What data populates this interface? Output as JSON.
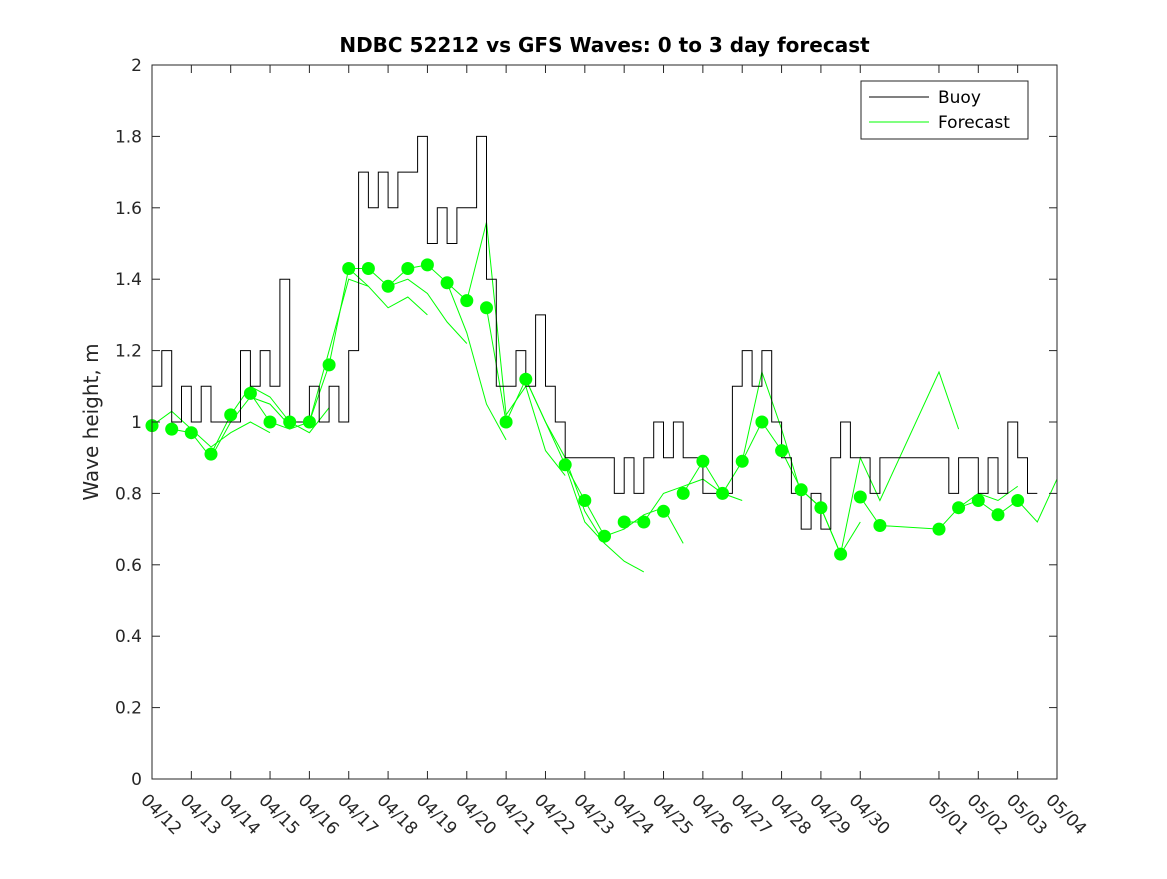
{
  "chart_data": {
    "type": "line",
    "title": "NDBC 52212 vs GFS Waves: 0 to 3 day forecast",
    "xlabel": "",
    "ylabel": "Wave height, m",
    "xlim": [
      "04/12",
      "05/04"
    ],
    "ylim": [
      0,
      2
    ],
    "x_tick_labels": [
      "04/12",
      "04/13",
      "04/14",
      "04/15",
      "04/16",
      "04/17",
      "04/18",
      "04/19",
      "04/20",
      "04/21",
      "04/22",
      "04/23",
      "04/24",
      "04/25",
      "04/26",
      "04/27",
      "04/28",
      "04/29",
      "04/30",
      "05/01",
      "05/02",
      "05/03",
      "05/04"
    ],
    "y_tick_labels": [
      "0",
      "0.2",
      "0.4",
      "0.6",
      "0.8",
      "1",
      "1.2",
      "1.4",
      "1.6",
      "1.8",
      "2"
    ],
    "y_ticks": [
      0,
      0.2,
      0.4,
      0.6,
      0.8,
      1,
      1.2,
      1.4,
      1.6,
      1.8,
      2
    ],
    "grid": false,
    "legend_position": "top-right",
    "colors": {
      "buoy": "#000000",
      "forecast": "#00ff00"
    },
    "series": [
      {
        "name": "Buoy",
        "x": [
          "04/12 00:00",
          "04/12 06:00",
          "04/12 12:00",
          "04/12 18:00",
          "04/13 00:00",
          "04/13 06:00",
          "04/13 12:00",
          "04/13 18:00",
          "04/14 00:00",
          "04/14 06:00",
          "04/14 12:00",
          "04/14 18:00",
          "04/15 00:00",
          "04/15 06:00",
          "04/15 12:00",
          "04/15 18:00",
          "04/16 00:00",
          "04/16 06:00",
          "04/16 12:00",
          "04/16 18:00",
          "04/17 00:00",
          "04/17 06:00",
          "04/17 12:00",
          "04/17 18:00",
          "04/18 00:00",
          "04/18 06:00",
          "04/18 12:00",
          "04/18 18:00",
          "04/19 00:00",
          "04/19 06:00",
          "04/19 12:00",
          "04/19 18:00",
          "04/20 00:00",
          "04/20 06:00",
          "04/20 12:00",
          "04/20 18:00",
          "04/21 00:00",
          "04/21 06:00",
          "04/21 12:00",
          "04/21 18:00",
          "04/22 00:00",
          "04/22 06:00",
          "04/22 12:00",
          "04/22 18:00",
          "04/23 00:00",
          "04/23 06:00",
          "04/23 12:00",
          "04/23 18:00",
          "04/24 00:00",
          "04/24 06:00",
          "04/24 12:00",
          "04/24 18:00",
          "04/25 00:00",
          "04/25 06:00",
          "04/25 12:00",
          "04/25 18:00",
          "04/26 00:00",
          "04/26 06:00",
          "04/26 12:00",
          "04/26 18:00",
          "04/27 00:00",
          "04/27 06:00",
          "04/27 12:00",
          "04/27 18:00",
          "04/28 00:00",
          "04/28 06:00",
          "04/28 12:00",
          "04/28 18:00",
          "04/29 00:00",
          "04/29 06:00",
          "04/29 12:00",
          "04/29 18:00",
          "04/30 00:00",
          "04/30 06:00",
          "04/30 12:00",
          "04/30 18:00",
          "05/01 00:00",
          "05/01 06:00",
          "05/01 12:00",
          "05/01 18:00",
          "05/02 00:00",
          "05/02 06:00",
          "05/02 12:00",
          "05/02 18:00",
          "05/03 00:00",
          "05/03 06:00",
          "05/03 12:00"
        ],
        "y": [
          1.1,
          1.2,
          1.0,
          1.1,
          1.0,
          1.1,
          1.0,
          1.0,
          1.0,
          1.2,
          1.1,
          1.2,
          1.1,
          1.4,
          1.0,
          1.0,
          1.1,
          1.0,
          1.1,
          1.0,
          1.2,
          1.7,
          1.6,
          1.7,
          1.6,
          1.7,
          1.7,
          1.8,
          1.5,
          1.6,
          1.5,
          1.6,
          1.6,
          1.8,
          1.4,
          1.1,
          1.1,
          1.2,
          1.1,
          1.3,
          1.1,
          1.0,
          0.9,
          0.9,
          0.9,
          0.9,
          0.9,
          0.8,
          0.9,
          0.8,
          0.9,
          1.0,
          0.9,
          1.0,
          0.9,
          0.9,
          0.8,
          0.8,
          0.8,
          1.1,
          1.2,
          1.1,
          1.2,
          1.0,
          0.9,
          0.8,
          0.7,
          0.8,
          0.7,
          0.9,
          1.0,
          0.9,
          0.9,
          0.8,
          0.9,
          0.9,
          0.9,
          0.8,
          0.9,
          0.9,
          0.8,
          0.9,
          0.8,
          1.0,
          0.9,
          0.8,
          0.8
        ]
      },
      {
        "name": "Forecast",
        "markers": {
          "x": [
            "04/12 00:00",
            "04/12 12:00",
            "04/13 00:00",
            "04/13 12:00",
            "04/14 00:00",
            "04/14 12:00",
            "04/15 00:00",
            "04/15 12:00",
            "04/16 00:00",
            "04/16 12:00",
            "04/17 00:00",
            "04/17 12:00",
            "04/18 00:00",
            "04/18 12:00",
            "04/19 00:00",
            "04/19 12:00",
            "04/20 00:00",
            "04/20 12:00",
            "04/21 00:00",
            "04/21 12:00",
            "04/22 12:00",
            "04/23 00:00",
            "04/23 12:00",
            "04/24 00:00",
            "04/24 12:00",
            "04/25 00:00",
            "04/25 12:00",
            "04/26 00:00",
            "04/26 12:00",
            "04/27 00:00",
            "04/27 12:00",
            "04/28 00:00",
            "04/28 12:00",
            "04/29 00:00",
            "04/29 12:00",
            "04/30 00:00",
            "04/30 12:00",
            "05/01 00:00",
            "05/01 12:00",
            "05/02 00:00",
            "05/02 12:00",
            "05/03 00:00"
          ],
          "y": [
            0.99,
            0.98,
            0.97,
            0.91,
            1.02,
            1.08,
            1.0,
            1.0,
            1.0,
            1.16,
            1.43,
            1.43,
            1.38,
            1.43,
            1.44,
            1.39,
            1.34,
            1.32,
            1.0,
            1.12,
            0.88,
            0.78,
            0.68,
            0.72,
            0.72,
            0.75,
            0.8,
            0.89,
            0.8,
            0.89,
            1.0,
            0.92,
            0.81,
            0.76,
            0.63,
            0.79,
            0.71,
            0.7,
            0.76,
            0.78,
            0.74,
            0.78
          ]
        },
        "runs": [
          {
            "x": [
              "04/12 00:00",
              "04/12 12:00",
              "04/13 00:00",
              "04/13 12:00",
              "04/14 00:00",
              "04/14 12:00",
              "04/15 00:00"
            ],
            "y": [
              0.99,
              1.03,
              0.98,
              0.93,
              0.97,
              1.0,
              0.97
            ]
          },
          {
            "x": [
              "04/12 12:00",
              "04/13 00:00",
              "04/13 12:00",
              "04/14 00:00",
              "04/14 12:00",
              "04/15 00:00",
              "04/15 12:00"
            ],
            "y": [
              0.98,
              0.97,
              0.9,
              1.0,
              1.07,
              1.05,
              0.99
            ]
          },
          {
            "x": [
              "04/13 12:00",
              "04/14 00:00",
              "04/14 12:00",
              "04/15 00:00",
              "04/15 12:00",
              "04/16 00:00",
              "04/16 12:00"
            ],
            "y": [
              0.91,
              1.02,
              1.1,
              1.07,
              1.0,
              0.97,
              1.04
            ]
          },
          {
            "x": [
              "04/14 12:00",
              "04/15 00:00",
              "04/15 12:00",
              "04/16 00:00",
              "04/16 12:00",
              "04/17 00:00",
              "04/17 12:00"
            ],
            "y": [
              1.08,
              1.0,
              0.98,
              1.0,
              1.2,
              1.4,
              1.38
            ]
          },
          {
            "x": [
              "04/16 00:00",
              "04/16 12:00",
              "04/17 00:00",
              "04/17 12:00",
              "04/18 00:00",
              "04/18 12:00",
              "04/19 00:00"
            ],
            "y": [
              1.0,
              1.16,
              1.43,
              1.38,
              1.32,
              1.35,
              1.3
            ]
          },
          {
            "x": [
              "04/17 00:00",
              "04/17 12:00",
              "04/18 00:00",
              "04/18 12:00",
              "04/19 00:00",
              "04/19 12:00",
              "04/20 00:00"
            ],
            "y": [
              1.43,
              1.43,
              1.38,
              1.4,
              1.36,
              1.28,
              1.22
            ]
          },
          {
            "x": [
              "04/18 00:00",
              "04/18 12:00",
              "04/19 00:00",
              "04/19 12:00",
              "04/20 00:00",
              "04/20 12:00",
              "04/21 00:00"
            ],
            "y": [
              1.38,
              1.43,
              1.44,
              1.39,
              1.25,
              1.05,
              0.95
            ]
          },
          {
            "x": [
              "04/19 12:00",
              "04/20 00:00",
              "04/20 12:00",
              "04/21 00:00",
              "04/21 12:00",
              "04/22 00:00",
              "04/22 12:00"
            ],
            "y": [
              1.39,
              1.34,
              1.56,
              1.02,
              1.1,
              0.92,
              0.85
            ]
          },
          {
            "x": [
              "04/20 12:00",
              "04/21 00:00",
              "04/21 12:00",
              "04/22 00:00",
              "04/22 12:00",
              "04/23 00:00",
              "04/23 12:00"
            ],
            "y": [
              1.32,
              1.0,
              1.12,
              1.0,
              0.9,
              0.75,
              0.66
            ]
          },
          {
            "x": [
              "04/21 12:00",
              "04/22 00:00",
              "04/22 12:00",
              "04/23 00:00",
              "04/23 12:00",
              "04/24 00:00",
              "04/24 12:00"
            ],
            "y": [
              1.12,
              1.0,
              0.88,
              0.72,
              0.66,
              0.61,
              0.58
            ]
          },
          {
            "x": [
              "04/22 12:00",
              "04/23 00:00",
              "04/23 12:00",
              "04/24 00:00",
              "04/24 12:00",
              "04/25 00:00",
              "04/25 12:00"
            ],
            "y": [
              0.88,
              0.78,
              0.68,
              0.7,
              0.74,
              0.76,
              0.66
            ]
          },
          {
            "x": [
              "04/24 00:00",
              "04/24 12:00",
              "04/25 00:00",
              "04/25 12:00",
              "04/26 00:00",
              "04/26 12:00",
              "04/27 00:00"
            ],
            "y": [
              0.72,
              0.72,
              0.8,
              0.82,
              0.84,
              0.8,
              0.78
            ]
          },
          {
            "x": [
              "04/25 12:00",
              "04/26 00:00",
              "04/26 12:00",
              "04/27 00:00",
              "04/27 12:00",
              "04/28 00:00",
              "04/28 12:00"
            ],
            "y": [
              0.8,
              0.89,
              0.8,
              0.89,
              1.14,
              0.98,
              0.8
            ]
          },
          {
            "x": [
              "04/27 00:00",
              "04/27 12:00",
              "04/28 00:00",
              "04/28 12:00",
              "04/29 00:00",
              "04/29 12:00",
              "04/30 00:00"
            ],
            "y": [
              0.89,
              1.0,
              0.92,
              0.81,
              0.76,
              0.63,
              0.72
            ]
          },
          {
            "x": [
              "04/28 12:00",
              "04/29 00:00",
              "04/29 12:00",
              "04/30 00:00",
              "04/30 12:00",
              "05/01 00:00",
              "05/01 12:00"
            ],
            "y": [
              0.81,
              0.76,
              0.63,
              0.9,
              0.78,
              1.14,
              0.98
            ]
          },
          {
            "x": [
              "04/30 00:00",
              "04/30 12:00",
              "05/01 00:00",
              "05/01 12:00",
              "05/02 00:00",
              "05/02 12:00",
              "05/03 00:00"
            ],
            "y": [
              0.79,
              0.71,
              0.7,
              0.76,
              0.8,
              0.78,
              0.82
            ]
          },
          {
            "x": [
              "05/01 12:00",
              "05/02 00:00",
              "05/02 12:00",
              "05/03 00:00",
              "05/03 12:00",
              "05/04 00:00"
            ],
            "y": [
              0.76,
              0.78,
              0.74,
              0.78,
              0.72,
              0.84
            ]
          }
        ]
      }
    ]
  }
}
